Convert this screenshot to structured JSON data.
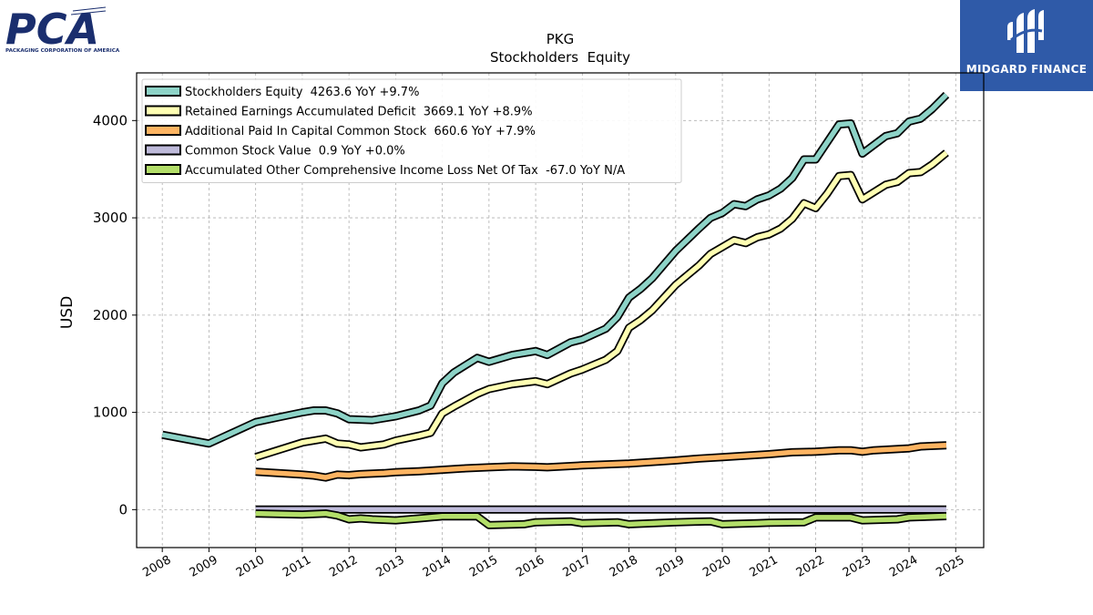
{
  "logos": {
    "left": {
      "text": "PCA",
      "tagline": "PACKAGING CORPORATION OF AMERICA",
      "color": "#1a2e6e"
    },
    "right": {
      "text": "MIDGARD FINANCE",
      "background": "#2f5aa8"
    }
  },
  "chart_data": {
    "type": "line",
    "title": "PKG",
    "subtitle": "Stockholders  Equity",
    "ylabel": "USD",
    "xlabel": "",
    "xlim": [
      2007.45,
      2025.6
    ],
    "ylim": [
      -390,
      4490
    ],
    "x_ticks": [
      2008,
      2009,
      2010,
      2011,
      2012,
      2013,
      2014,
      2015,
      2016,
      2017,
      2018,
      2019,
      2020,
      2021,
      2022,
      2023,
      2024,
      2025
    ],
    "x_tick_labels": [
      "2008",
      "2009",
      "2010",
      "2011",
      "2012",
      "2013",
      "2014",
      "2015",
      "2016",
      "2017",
      "2018",
      "2019",
      "2020",
      "2021",
      "2022",
      "2023",
      "2024",
      "2025"
    ],
    "y_ticks": [
      0,
      1000,
      2000,
      3000,
      4000
    ],
    "y_tick_labels": [
      "0",
      "1000",
      "2000",
      "3000",
      "4000"
    ],
    "grid": true,
    "legend_position": "top-left",
    "series": [
      {
        "name": "Stockholders Equity  4263.6 YoY +9.7%",
        "color": "#8dd3c7",
        "points": [
          [
            2008.0,
            770
          ],
          [
            2009.0,
            680
          ],
          [
            2010.0,
            900
          ],
          [
            2010.5,
            950
          ],
          [
            2011.0,
            1000
          ],
          [
            2011.25,
            1020
          ],
          [
            2011.5,
            1020
          ],
          [
            2011.75,
            990
          ],
          [
            2012.0,
            930
          ],
          [
            2012.5,
            920
          ],
          [
            2013.0,
            960
          ],
          [
            2013.5,
            1020
          ],
          [
            2013.75,
            1070
          ],
          [
            2014.0,
            1300
          ],
          [
            2014.25,
            1410
          ],
          [
            2014.75,
            1560
          ],
          [
            2015.0,
            1520
          ],
          [
            2015.5,
            1590
          ],
          [
            2016.0,
            1630
          ],
          [
            2016.25,
            1590
          ],
          [
            2016.75,
            1720
          ],
          [
            2017.0,
            1750
          ],
          [
            2017.5,
            1860
          ],
          [
            2017.75,
            1980
          ],
          [
            2018.0,
            2180
          ],
          [
            2018.25,
            2270
          ],
          [
            2018.5,
            2380
          ],
          [
            2018.75,
            2520
          ],
          [
            2019.0,
            2660
          ],
          [
            2019.5,
            2890
          ],
          [
            2019.75,
            3000
          ],
          [
            2020.0,
            3050
          ],
          [
            2020.25,
            3140
          ],
          [
            2020.5,
            3120
          ],
          [
            2020.75,
            3190
          ],
          [
            2021.0,
            3230
          ],
          [
            2021.25,
            3300
          ],
          [
            2021.5,
            3410
          ],
          [
            2021.75,
            3600
          ],
          [
            2022.0,
            3600
          ],
          [
            2022.5,
            3960
          ],
          [
            2022.75,
            3970
          ],
          [
            2023.0,
            3660
          ],
          [
            2023.5,
            3840
          ],
          [
            2023.75,
            3870
          ],
          [
            2024.0,
            3990
          ],
          [
            2024.25,
            4020
          ],
          [
            2024.5,
            4120
          ],
          [
            2024.8,
            4264
          ]
        ]
      },
      {
        "name": "Retained Earnings Accumulated Deficit  3669.1 YoY +8.9%",
        "color": "#ffffb3",
        "points": [
          [
            2010.0,
            540
          ],
          [
            2011.0,
            690
          ],
          [
            2011.5,
            730
          ],
          [
            2011.75,
            680
          ],
          [
            2012.0,
            670
          ],
          [
            2012.25,
            640
          ],
          [
            2012.75,
            670
          ],
          [
            2013.0,
            710
          ],
          [
            2013.5,
            760
          ],
          [
            2013.75,
            790
          ],
          [
            2014.0,
            990
          ],
          [
            2014.25,
            1060
          ],
          [
            2014.75,
            1190
          ],
          [
            2015.0,
            1240
          ],
          [
            2015.5,
            1290
          ],
          [
            2016.0,
            1320
          ],
          [
            2016.25,
            1290
          ],
          [
            2016.75,
            1400
          ],
          [
            2017.0,
            1440
          ],
          [
            2017.5,
            1540
          ],
          [
            2017.75,
            1630
          ],
          [
            2018.0,
            1870
          ],
          [
            2018.25,
            1950
          ],
          [
            2018.5,
            2050
          ],
          [
            2018.75,
            2180
          ],
          [
            2019.0,
            2310
          ],
          [
            2019.5,
            2510
          ],
          [
            2019.75,
            2630
          ],
          [
            2020.0,
            2700
          ],
          [
            2020.25,
            2770
          ],
          [
            2020.5,
            2740
          ],
          [
            2020.75,
            2800
          ],
          [
            2021.0,
            2830
          ],
          [
            2021.25,
            2890
          ],
          [
            2021.5,
            2990
          ],
          [
            2021.75,
            3150
          ],
          [
            2022.0,
            3100
          ],
          [
            2022.25,
            3250
          ],
          [
            2022.5,
            3430
          ],
          [
            2022.75,
            3440
          ],
          [
            2023.0,
            3190
          ],
          [
            2023.5,
            3340
          ],
          [
            2023.75,
            3370
          ],
          [
            2024.0,
            3460
          ],
          [
            2024.25,
            3470
          ],
          [
            2024.5,
            3550
          ],
          [
            2024.8,
            3669
          ]
        ]
      },
      {
        "name": "Additional Paid In Capital Common Stock  660.6 YoY +7.9%",
        "color": "#fdb462",
        "points": [
          [
            2010.0,
            390
          ],
          [
            2011.0,
            360
          ],
          [
            2011.25,
            350
          ],
          [
            2011.5,
            330
          ],
          [
            2011.75,
            360
          ],
          [
            2012.0,
            355
          ],
          [
            2012.25,
            365
          ],
          [
            2012.75,
            375
          ],
          [
            2013.0,
            385
          ],
          [
            2013.5,
            395
          ],
          [
            2014.0,
            410
          ],
          [
            2014.5,
            425
          ],
          [
            2015.0,
            435
          ],
          [
            2015.5,
            445
          ],
          [
            2016.0,
            440
          ],
          [
            2016.25,
            435
          ],
          [
            2017.0,
            455
          ],
          [
            2018.0,
            475
          ],
          [
            2019.0,
            505
          ],
          [
            2019.5,
            525
          ],
          [
            2020.0,
            540
          ],
          [
            2020.5,
            555
          ],
          [
            2021.0,
            570
          ],
          [
            2021.5,
            590
          ],
          [
            2022.0,
            595
          ],
          [
            2022.5,
            610
          ],
          [
            2022.75,
            610
          ],
          [
            2023.0,
            595
          ],
          [
            2023.25,
            610
          ],
          [
            2024.0,
            630
          ],
          [
            2024.25,
            650
          ],
          [
            2024.8,
            661
          ]
        ]
      },
      {
        "name": "Common Stock Value  0.9 YoY +0.0%",
        "color": "#bebada",
        "points": [
          [
            2010.0,
            1
          ],
          [
            2024.8,
            1
          ]
        ]
      },
      {
        "name": "Accumulated Other Comprehensive Income Loss Net Of Tax  -67.0 YoY N/A",
        "color": "#b3de69",
        "points": [
          [
            2010.0,
            -40
          ],
          [
            2011.0,
            -50
          ],
          [
            2011.5,
            -40
          ],
          [
            2011.75,
            -60
          ],
          [
            2012.0,
            -100
          ],
          [
            2012.25,
            -90
          ],
          [
            2012.5,
            -100
          ],
          [
            2013.0,
            -110
          ],
          [
            2013.5,
            -90
          ],
          [
            2014.0,
            -70
          ],
          [
            2014.75,
            -70
          ],
          [
            2015.0,
            -160
          ],
          [
            2015.75,
            -150
          ],
          [
            2016.0,
            -130
          ],
          [
            2016.75,
            -120
          ],
          [
            2017.0,
            -140
          ],
          [
            2017.75,
            -130
          ],
          [
            2018.0,
            -150
          ],
          [
            2019.0,
            -130
          ],
          [
            2019.75,
            -120
          ],
          [
            2020.0,
            -150
          ],
          [
            2020.75,
            -140
          ],
          [
            2021.0,
            -135
          ],
          [
            2021.75,
            -130
          ],
          [
            2022.0,
            -80
          ],
          [
            2022.75,
            -80
          ],
          [
            2023.0,
            -110
          ],
          [
            2023.75,
            -100
          ],
          [
            2024.0,
            -80
          ],
          [
            2024.8,
            -67
          ]
        ]
      }
    ]
  }
}
